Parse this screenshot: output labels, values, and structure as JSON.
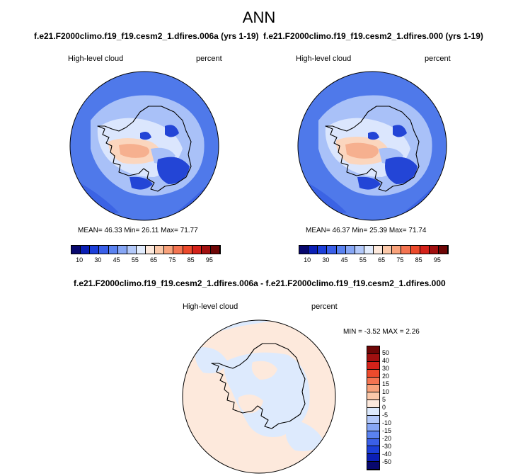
{
  "page_title": "ANN",
  "panels": [
    {
      "case_title": "f.e21.F2000climo.f19_f19.cesm2_1.dfires.006a (yrs 1-19)",
      "variable": "High-level cloud",
      "units": "percent",
      "stats": {
        "mean_label": "MEAN=",
        "mean": "46.33",
        "min_label": "Min=",
        "min": "26.11",
        "max_label": "Max=",
        "max": "71.77"
      }
    },
    {
      "case_title": "f.e21.F2000climo.f19_f19.cesm2_1.dfires.000 (yrs 1-19)",
      "variable": "High-level cloud",
      "units": "percent",
      "stats": {
        "mean_label": "MEAN=",
        "mean": "46.37",
        "min_label": "Min=",
        "min": "25.39",
        "max_label": "Max=",
        "max": "71.74"
      }
    }
  ],
  "diff": {
    "title": "f.e21.F2000climo.f19_f19.cesm2_1.dfires.006a - f.e21.F2000climo.f19_f19.cesm2_1.dfires.000",
    "variable": "High-level cloud",
    "units": "percent",
    "stats": {
      "min_label": "MIN =",
      "min": "-3.52",
      "max_label": "MAX =",
      "max": "2.26"
    }
  },
  "colorbar_abs": {
    "colors": [
      "#08086e",
      "#0b1fb5",
      "#1c3fd9",
      "#3a5fe8",
      "#5a82f0",
      "#86a6f5",
      "#b3c9fa",
      "#e2ecfd",
      "#fde9dc",
      "#fbc8a9",
      "#f8a27b",
      "#f47451",
      "#ec4a2c",
      "#d4221a",
      "#a11010",
      "#6e0606"
    ],
    "tick_labels": [
      "10",
      "30",
      "45",
      "55",
      "65",
      "75",
      "85",
      "95"
    ]
  },
  "colorbar_diff": {
    "colors": [
      "#6e0606",
      "#a11010",
      "#d4221a",
      "#ec4a2c",
      "#f47451",
      "#f8a27b",
      "#fbc8a9",
      "#fde9dc",
      "#ddeafd",
      "#b3c9fa",
      "#86a6f5",
      "#5a82f0",
      "#3a5fe8",
      "#1c3fd9",
      "#0b1fb5",
      "#08086e"
    ],
    "tick_labels": [
      "50",
      "40",
      "30",
      "20",
      "15",
      "10",
      "5",
      "0",
      "-5",
      "-10",
      "-15",
      "-20",
      "-30",
      "-40",
      "-50"
    ]
  },
  "map_colors": {
    "ocean_base": "#4f79ea",
    "ocean_deep": "#3b63e4",
    "ice_light": "#a9c1f8",
    "ice_pale": "#dbe6fd",
    "ice_deep": "#2345d6",
    "warm_light": "#fbd6be",
    "warm_mid": "#f6b08f",
    "diff_warm": "#fde9dc",
    "diff_cool": "#ddeafd"
  }
}
